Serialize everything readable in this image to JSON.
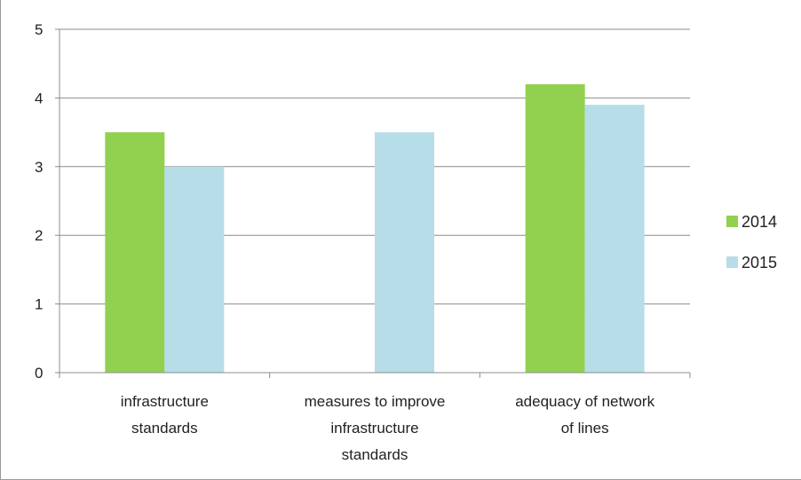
{
  "chart_data": {
    "type": "bar",
    "title": "",
    "xlabel": "",
    "ylabel": "",
    "ylim": [
      0,
      5
    ],
    "yticks": [
      0,
      1,
      2,
      3,
      4,
      5
    ],
    "grid": true,
    "legend_position": "right",
    "categories": [
      [
        "infrastructure",
        "standards"
      ],
      [
        "measures to improve",
        "infrastructure",
        "standards"
      ],
      [
        "adequacy of network",
        "of lines"
      ]
    ],
    "series": [
      {
        "name": "2014",
        "color": "#92d050",
        "values": [
          3.5,
          0,
          4.2
        ]
      },
      {
        "name": "2015",
        "color": "#b7dde8",
        "values": [
          3.0,
          3.5,
          3.9
        ]
      }
    ]
  }
}
